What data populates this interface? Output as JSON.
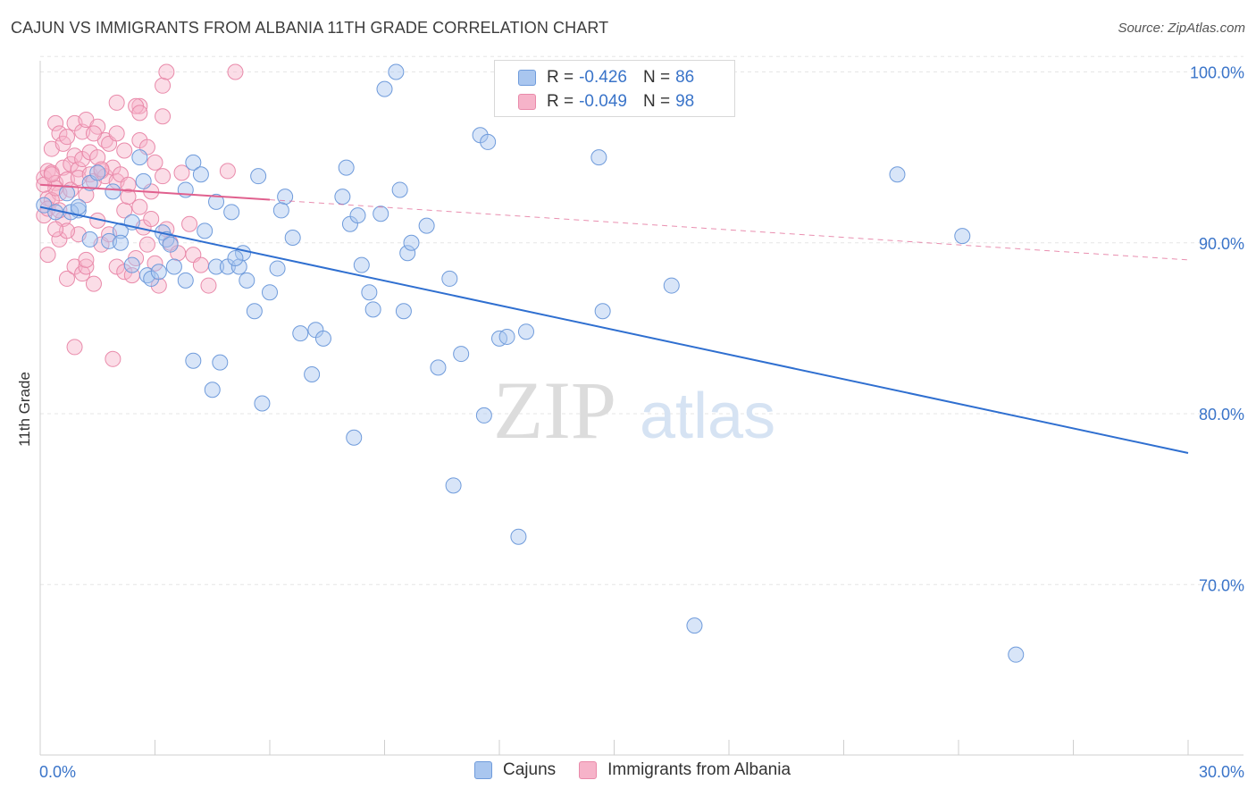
{
  "title": "CAJUN VS IMMIGRANTS FROM ALBANIA 11TH GRADE CORRELATION CHART",
  "source": "Source: ZipAtlas.com",
  "legend": {
    "row1": {
      "r_label": "R =",
      "r_value": "-0.426",
      "n_label": "N =",
      "n_value": "86"
    },
    "row2": {
      "r_label": "R =",
      "r_value": "-0.049",
      "n_label": "N =",
      "n_value": "98"
    }
  },
  "bottom_legend": {
    "series1": "Cajuns",
    "series2": "Immigrants from Albania"
  },
  "watermark": {
    "part1": "ZIP",
    "part2": "atlas"
  },
  "colors": {
    "blue_fill": "#a9c6ef",
    "blue_stroke": "#6f9bdb",
    "blue_line": "#2f6fd0",
    "pink_fill": "#f6b3c9",
    "pink_stroke": "#e98aaa",
    "pink_line": "#e0608e",
    "tick_label": "#3a74c9",
    "grid": "#e6e6e6"
  },
  "chart_data": {
    "type": "scatter",
    "title": "CAJUN VS IMMIGRANTS FROM ALBANIA 11TH GRADE CORRELATION CHART",
    "xlabel": "",
    "ylabel": "11th Grade",
    "xlim": [
      0,
      30
    ],
    "ylim": [
      60,
      101
    ],
    "x_tick_labels": [
      "0.0%",
      "30.0%"
    ],
    "y_ticks": [
      70,
      80,
      90,
      100
    ],
    "y_tick_labels": [
      "70.0%",
      "80.0%",
      "90.0%",
      "100.0%"
    ],
    "grid": true,
    "series": [
      {
        "name": "Cajuns",
        "r": -0.426,
        "n": 86,
        "trend": {
          "x": [
            0,
            30
          ],
          "y": [
            92.1,
            77.7
          ],
          "style": "solid"
        },
        "points": [
          [
            0.1,
            92.2
          ],
          [
            0.4,
            91.8
          ],
          [
            0.7,
            92.9
          ],
          [
            1.0,
            91.9
          ],
          [
            1.3,
            93.5
          ],
          [
            0.8,
            91.8
          ],
          [
            1.5,
            94.1
          ],
          [
            1.9,
            93.0
          ],
          [
            2.1,
            90.7
          ],
          [
            2.6,
            95.0
          ],
          [
            1.8,
            90.1
          ],
          [
            2.1,
            90.0
          ],
          [
            2.4,
            88.7
          ],
          [
            2.8,
            88.1
          ],
          [
            2.9,
            87.9
          ],
          [
            3.2,
            90.6
          ],
          [
            3.3,
            90.2
          ],
          [
            3.4,
            89.9
          ],
          [
            3.5,
            88.6
          ],
          [
            3.8,
            93.1
          ],
          [
            3.8,
            87.8
          ],
          [
            4.0,
            94.7
          ],
          [
            4.0,
            83.1
          ],
          [
            4.2,
            94.0
          ],
          [
            4.3,
            90.7
          ],
          [
            4.5,
            81.4
          ],
          [
            4.6,
            92.4
          ],
          [
            4.6,
            88.6
          ],
          [
            4.7,
            83.0
          ],
          [
            4.9,
            88.6
          ],
          [
            5.0,
            91.8
          ],
          [
            5.2,
            88.6
          ],
          [
            5.3,
            89.4
          ],
          [
            5.4,
            87.8
          ],
          [
            5.6,
            86.0
          ],
          [
            5.7,
            93.9
          ],
          [
            5.8,
            80.6
          ],
          [
            6.0,
            87.1
          ],
          [
            6.2,
            88.5
          ],
          [
            6.4,
            92.7
          ],
          [
            6.6,
            90.3
          ],
          [
            6.8,
            84.7
          ],
          [
            7.1,
            82.3
          ],
          [
            7.2,
            84.9
          ],
          [
            7.4,
            84.4
          ],
          [
            7.9,
            92.7
          ],
          [
            8.0,
            94.4
          ],
          [
            8.1,
            91.1
          ],
          [
            8.2,
            78.6
          ],
          [
            8.3,
            91.6
          ],
          [
            8.6,
            87.1
          ],
          [
            8.7,
            86.1
          ],
          [
            8.9,
            91.7
          ],
          [
            9.0,
            99.0
          ],
          [
            9.3,
            100.0
          ],
          [
            9.4,
            93.1
          ],
          [
            9.5,
            86.0
          ],
          [
            9.6,
            89.4
          ],
          [
            9.7,
            90.0
          ],
          [
            10.1,
            91.0
          ],
          [
            10.4,
            82.7
          ],
          [
            10.7,
            87.9
          ],
          [
            10.8,
            75.8
          ],
          [
            11.0,
            83.5
          ],
          [
            11.5,
            96.3
          ],
          [
            11.6,
            79.9
          ],
          [
            11.7,
            95.9
          ],
          [
            12.0,
            84.4
          ],
          [
            12.2,
            84.5
          ],
          [
            12.5,
            72.8
          ],
          [
            12.7,
            84.8
          ],
          [
            14.6,
            95.0
          ],
          [
            14.7,
            86.0
          ],
          [
            16.5,
            87.5
          ],
          [
            17.1,
            67.6
          ],
          [
            22.4,
            94.0
          ],
          [
            24.1,
            90.4
          ],
          [
            25.5,
            65.9
          ],
          [
            1.0,
            92.1
          ],
          [
            2.4,
            91.2
          ],
          [
            1.3,
            90.2
          ],
          [
            3.1,
            88.3
          ],
          [
            6.3,
            91.9
          ],
          [
            5.1,
            89.1
          ],
          [
            2.7,
            93.6
          ],
          [
            8.4,
            88.7
          ]
        ]
      },
      {
        "name": "Immigrants from Albania",
        "r": -0.049,
        "n": 98,
        "trend": {
          "x": [
            0,
            30
          ],
          "y": [
            93.4,
            89.0
          ],
          "solid_until": 6.0
        },
        "points": [
          [
            0.1,
            93.8
          ],
          [
            0.2,
            94.2
          ],
          [
            0.1,
            91.6
          ],
          [
            0.2,
            92.6
          ],
          [
            0.3,
            95.5
          ],
          [
            0.3,
            94.1
          ],
          [
            0.4,
            93.5
          ],
          [
            0.4,
            97.0
          ],
          [
            0.5,
            96.4
          ],
          [
            0.5,
            92.9
          ],
          [
            0.6,
            94.4
          ],
          [
            0.6,
            95.8
          ],
          [
            0.7,
            93.7
          ],
          [
            0.7,
            96.2
          ],
          [
            0.8,
            94.6
          ],
          [
            0.8,
            93.1
          ],
          [
            0.9,
            97.0
          ],
          [
            0.9,
            95.1
          ],
          [
            1.0,
            94.3
          ],
          [
            1.0,
            93.8
          ],
          [
            1.1,
            96.5
          ],
          [
            1.1,
            94.9
          ],
          [
            1.2,
            92.8
          ],
          [
            1.2,
            97.2
          ],
          [
            1.3,
            95.3
          ],
          [
            1.3,
            94.0
          ],
          [
            1.4,
            93.6
          ],
          [
            1.5,
            96.8
          ],
          [
            1.5,
            95.0
          ],
          [
            1.6,
            94.2
          ],
          [
            1.7,
            96.0
          ],
          [
            1.7,
            93.9
          ],
          [
            1.8,
            95.8
          ],
          [
            1.9,
            94.4
          ],
          [
            2.0,
            96.4
          ],
          [
            2.0,
            93.6
          ],
          [
            2.1,
            94.0
          ],
          [
            2.2,
            95.4
          ],
          [
            2.3,
            93.4
          ],
          [
            2.0,
            98.2
          ],
          [
            2.6,
            92.1
          ],
          [
            2.7,
            90.9
          ],
          [
            2.8,
            89.9
          ],
          [
            2.9,
            93.0
          ],
          [
            3.0,
            88.8
          ],
          [
            3.1,
            87.5
          ],
          [
            3.2,
            93.9
          ],
          [
            3.3,
            90.8
          ],
          [
            3.4,
            90.0
          ],
          [
            3.6,
            89.4
          ],
          [
            3.7,
            94.1
          ],
          [
            4.0,
            89.3
          ],
          [
            4.2,
            88.7
          ],
          [
            4.4,
            87.5
          ],
          [
            4.9,
            94.2
          ],
          [
            0.2,
            89.3
          ],
          [
            0.5,
            90.2
          ],
          [
            0.7,
            87.9
          ],
          [
            0.9,
            88.6
          ],
          [
            1.1,
            88.2
          ],
          [
            1.2,
            88.6
          ],
          [
            1.4,
            87.6
          ],
          [
            1.6,
            89.9
          ],
          [
            1.8,
            90.5
          ],
          [
            2.0,
            88.6
          ],
          [
            2.2,
            88.3
          ],
          [
            2.4,
            88.1
          ],
          [
            2.5,
            89.1
          ],
          [
            0.9,
            83.9
          ],
          [
            1.9,
            83.2
          ],
          [
            1.0,
            90.5
          ],
          [
            1.5,
            91.3
          ],
          [
            2.2,
            91.9
          ],
          [
            0.6,
            91.4
          ],
          [
            0.3,
            92.5
          ],
          [
            2.6,
            96.0
          ],
          [
            2.6,
            98.0
          ],
          [
            2.5,
            98.0
          ],
          [
            2.6,
            97.6
          ],
          [
            3.2,
            99.2
          ],
          [
            3.3,
            100.0
          ],
          [
            5.1,
            100.0
          ],
          [
            3.2,
            97.4
          ],
          [
            1.2,
            89.0
          ],
          [
            0.4,
            93.2
          ],
          [
            0.7,
            90.7
          ],
          [
            1.6,
            94.3
          ],
          [
            2.9,
            91.4
          ],
          [
            3.9,
            91.1
          ],
          [
            0.1,
            93.4
          ],
          [
            0.2,
            92.0
          ],
          [
            0.3,
            94.0
          ],
          [
            0.4,
            90.8
          ],
          [
            0.5,
            91.9
          ],
          [
            1.4,
            96.4
          ],
          [
            2.3,
            92.7
          ],
          [
            3.0,
            94.7
          ],
          [
            2.8,
            95.6
          ]
        ]
      }
    ]
  }
}
